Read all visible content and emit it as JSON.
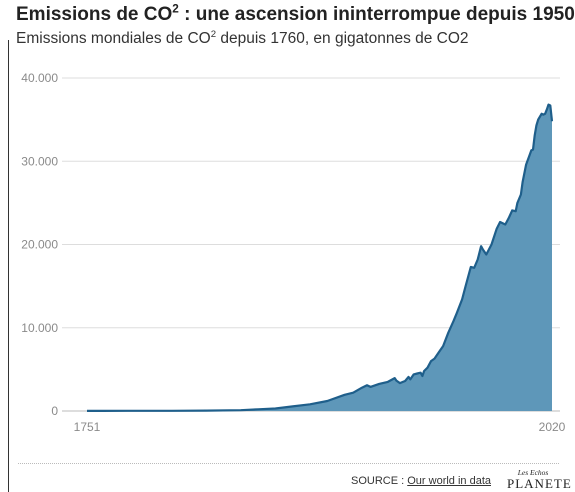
{
  "header": {
    "title_pre": "Emissions de CO",
    "title_sup": "2",
    "title_post": " : une ascension ininterrompue depuis 1950",
    "subtitle_pre": "Emissions mondiales de CO",
    "subtitle_sup": "2",
    "subtitle_post": " depuis 1760, en gigatonnes de CO2"
  },
  "footer": {
    "source_label": "SOURCE : ",
    "source_link": "Our world in data",
    "logo_top": "Les Echos",
    "logo_main": "PLANETE"
  },
  "colors": {
    "area_fill": "#5e97b9",
    "line": "#1f5f8b",
    "grid": "#dddddd"
  },
  "chart_data": {
    "type": "area",
    "title": "Emissions de CO2 : une ascension ininterrompue depuis 1950",
    "subtitle": "Emissions mondiales de CO2 depuis 1760, en gigatonnes de CO2",
    "xlabel": "",
    "ylabel": "",
    "xlim": [
      1751,
      2020
    ],
    "ylim": [
      0,
      40000
    ],
    "x_tick_labels": [
      "1751",
      "2020"
    ],
    "y_ticks": [
      0,
      10000,
      20000,
      30000,
      40000
    ],
    "y_tick_labels": [
      "0",
      "10.000",
      "20.000",
      "30.000",
      "40.000"
    ],
    "grid": true,
    "legend": "none",
    "series": [
      {
        "x": [
          1751,
          1760,
          1780,
          1800,
          1820,
          1840,
          1850,
          1860,
          1870,
          1880,
          1890,
          1900,
          1905,
          1910,
          1913,
          1915,
          1920,
          1925,
          1929,
          1930,
          1932,
          1935,
          1937,
          1938,
          1940,
          1942,
          1944,
          1945,
          1946,
          1948,
          1950,
          1952,
          1955,
          1957,
          1960,
          1963,
          1965,
          1968,
          1970,
          1973,
          1975,
          1977,
          1979,
          1980,
          1982,
          1985,
          1988,
          1990,
          1991,
          1993,
          1995,
          1997,
          1999,
          2000,
          2002,
          2003,
          2005,
          2007,
          2008,
          2009,
          2010,
          2011,
          2012,
          2014,
          2015,
          2016,
          2017,
          2018,
          2019,
          2020
        ],
        "y": [
          10,
          15,
          20,
          30,
          50,
          100,
          200,
          300,
          550,
          800,
          1200,
          1950,
          2200,
          2800,
          3100,
          2900,
          3250,
          3500,
          3950,
          3650,
          3350,
          3600,
          4100,
          3800,
          4400,
          4500,
          4600,
          4200,
          4800,
          5200,
          6000,
          6300,
          7200,
          7800,
          9400,
          10800,
          11800,
          13400,
          15000,
          17300,
          17200,
          18200,
          19800,
          19400,
          18800,
          20000,
          21900,
          22700,
          22600,
          22400,
          23200,
          24100,
          24000,
          25000,
          26000,
          27500,
          29600,
          30700,
          31300,
          31400,
          33100,
          34300,
          35000,
          35700,
          35600,
          35700,
          36200,
          36800,
          36700,
          34800
        ]
      }
    ]
  }
}
